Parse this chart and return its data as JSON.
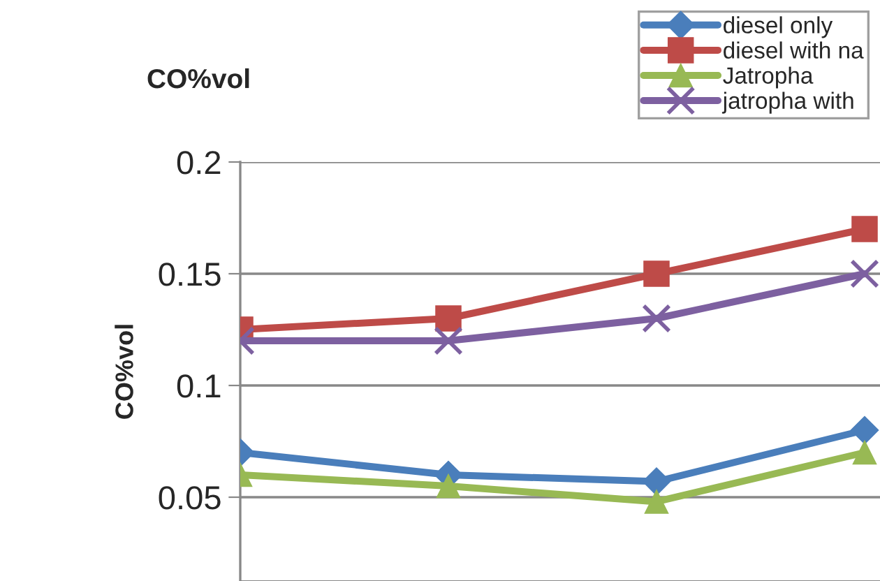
{
  "chart_data": {
    "type": "line",
    "title": "CO%vol",
    "ylabel": "CO%vol",
    "categories": [
      null,
      null,
      null,
      null
    ],
    "series": [
      {
        "name": "diesel only",
        "color": "#4a7ebb",
        "marker": "diamond",
        "values": [
          0.07,
          0.06,
          0.057,
          0.08
        ]
      },
      {
        "name": "diesel with na",
        "color": "#be4b48",
        "marker": "square",
        "values": [
          0.125,
          0.13,
          0.15,
          0.17
        ]
      },
      {
        "name": "Jatropha",
        "color": "#98b954",
        "marker": "triangle",
        "values": [
          0.06,
          0.055,
          0.048,
          0.07
        ]
      },
      {
        "name": "jatropha with",
        "color": "#7d60a0",
        "marker": "cross",
        "values": [
          0.12,
          0.12,
          0.13,
          0.15
        ]
      }
    ],
    "ylim": [
      0.0125,
      0.2
    ],
    "yticks": [
      0.05,
      0.1,
      0.15,
      0.2
    ],
    "grid": "y",
    "legend": "top right",
    "tick_labels": "y",
    "line_style": "solid"
  }
}
